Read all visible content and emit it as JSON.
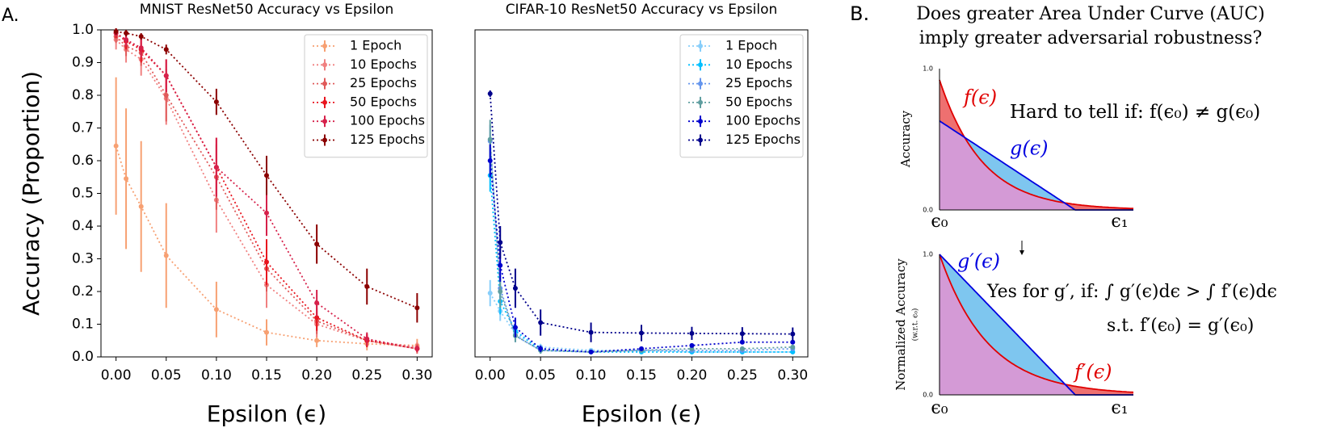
{
  "panel_a_label": "A.",
  "chart_data": [
    {
      "type": "line",
      "title": "MNIST ResNet50 Accuracy vs Epsilon",
      "xlabel": "Epsilon (ϵ)",
      "ylabel": "Accuracy (Proportion)",
      "x": [
        0,
        0.01,
        0.025,
        0.05,
        0.1,
        0.15,
        0.2,
        0.25,
        0.3
      ],
      "xlim": [
        -0.015,
        0.315
      ],
      "xticks": [
        {
          "value": 0,
          "label": "0.00"
        },
        0.05,
        {
          "value": 0.1,
          "label": "0.10"
        },
        0.15,
        {
          "value": 0.2,
          "label": "0.20"
        },
        0.25,
        {
          "value": 0.3,
          "label": "0.30"
        }
      ],
      "ylim": [
        0,
        1
      ],
      "yticks": [
        {
          "value": 0,
          "label": "0.0"
        },
        0.1,
        0.2,
        0.3,
        0.4,
        0.5,
        0.6,
        0.7,
        0.8,
        0.9,
        {
          "value": 1,
          "label": "1.0"
        }
      ],
      "legend": "upper right",
      "grid": false,
      "series": [
        {
          "name": "1 Epoch",
          "color": "#f7a072",
          "values": [
            0.645,
            0.545,
            0.46,
            0.31,
            0.145,
            0.075,
            0.05,
            0.04,
            0.035
          ],
          "errors": [
            0.21,
            0.215,
            0.2,
            0.16,
            0.085,
            0.04,
            0.02,
            0.02,
            0.02
          ]
        },
        {
          "name": "10 Epochs",
          "color": "#f08080",
          "values": [
            0.97,
            0.94,
            0.91,
            0.79,
            0.48,
            0.22,
            0.1,
            0.05,
            0.03
          ],
          "errors": [
            0.03,
            0.04,
            0.05,
            0.08,
            0.1,
            0.07,
            0.04,
            0.02,
            0.015
          ]
        },
        {
          "name": "25 Epochs",
          "color": "#e05a5a",
          "values": [
            0.98,
            0.95,
            0.93,
            0.8,
            0.55,
            0.27,
            0.11,
            0.05,
            0.025
          ],
          "errors": [
            0.02,
            0.03,
            0.04,
            0.08,
            0.1,
            0.07,
            0.04,
            0.02,
            0.015
          ]
        },
        {
          "name": "50 Epochs",
          "color": "#e8141e",
          "values": [
            0.99,
            0.965,
            0.94,
            0.86,
            0.58,
            0.29,
            0.12,
            0.05,
            0.025
          ],
          "errors": [
            0.015,
            0.025,
            0.04,
            0.05,
            0.09,
            0.07,
            0.04,
            0.02,
            0.01
          ]
        },
        {
          "name": "100 Epochs",
          "color": "#d6204a",
          "values": [
            0.99,
            0.97,
            0.945,
            0.86,
            0.58,
            0.44,
            0.165,
            0.055,
            0.025
          ],
          "errors": [
            0.01,
            0.02,
            0.03,
            0.05,
            0.09,
            0.07,
            0.04,
            0.02,
            0.01
          ]
        },
        {
          "name": "125 Epochs",
          "color": "#8b0000",
          "values": [
            0.995,
            0.99,
            0.98,
            0.94,
            0.78,
            0.555,
            0.345,
            0.215,
            0.15
          ],
          "errors": [
            0.01,
            0.01,
            0.01,
            0.015,
            0.04,
            0.06,
            0.06,
            0.055,
            0.045
          ]
        }
      ]
    },
    {
      "type": "line",
      "title": "CIFAR-10 ResNet50 Accuracy vs Epsilon",
      "xlabel": "Epsilon (ϵ)",
      "x": [
        0,
        0.01,
        0.025,
        0.05,
        0.1,
        0.15,
        0.2,
        0.25,
        0.3
      ],
      "xlim": [
        -0.015,
        0.315
      ],
      "xticks": [
        {
          "value": 0,
          "label": "0.00"
        },
        0.05,
        {
          "value": 0.1,
          "label": "0.10"
        },
        0.15,
        {
          "value": 0.2,
          "label": "0.20"
        },
        0.25,
        {
          "value": 0.3,
          "label": "0.30"
        }
      ],
      "ylim": [
        0,
        1
      ],
      "legend": "upper right",
      "grid": false,
      "series": [
        {
          "name": "1 Epoch",
          "color": "#87cefa",
          "values": [
            0.195,
            0.14,
            0.07,
            0.03,
            0.02,
            0.02,
            0.015,
            0.015,
            0.015
          ],
          "errors": [
            0.04,
            0.03,
            0.02,
            0.01,
            0.005,
            0.005,
            0.005,
            0.005,
            0.005
          ]
        },
        {
          "name": "10 Epochs",
          "color": "#00bfff",
          "values": [
            0.555,
            0.17,
            0.08,
            0.02,
            0.015,
            0.015,
            0.015,
            0.015,
            0.015
          ],
          "errors": [
            0.05,
            0.04,
            0.02,
            0.01,
            0.005,
            0.005,
            0.005,
            0.005,
            0.005
          ]
        },
        {
          "name": "25 Epochs",
          "color": "#6495ed",
          "values": [
            0.66,
            0.21,
            0.065,
            0.02,
            0.015,
            0.02,
            0.02,
            0.02,
            0.025
          ],
          "errors": [
            0.05,
            0.05,
            0.02,
            0.01,
            0.005,
            0.005,
            0.005,
            0.005,
            0.005
          ]
        },
        {
          "name": "50 Epochs",
          "color": "#5f9ea0",
          "values": [
            0.665,
            0.2,
            0.065,
            0.02,
            0.015,
            0.02,
            0.025,
            0.025,
            0.03
          ],
          "errors": [
            0.06,
            0.05,
            0.02,
            0.01,
            0.005,
            0.005,
            0.005,
            0.005,
            0.005
          ]
        },
        {
          "name": "100 Epochs",
          "color": "#0000cd",
          "values": [
            0.6,
            0.28,
            0.09,
            0.025,
            0.015,
            0.025,
            0.035,
            0.045,
            0.045
          ],
          "errors": [
            0.05,
            0.05,
            0.03,
            0.01,
            0.005,
            0.005,
            0.005,
            0.005,
            0.005
          ]
        },
        {
          "name": "125 Epochs",
          "color": "#00008b",
          "values": [
            0.805,
            0.35,
            0.21,
            0.105,
            0.075,
            0.073,
            0.072,
            0.071,
            0.07
          ],
          "errors": [
            0.01,
            0.05,
            0.06,
            0.04,
            0.03,
            0.025,
            0.02,
            0.02,
            0.02
          ]
        }
      ]
    }
  ],
  "panel_b": {
    "label": "B.",
    "title": [
      "Does greater Area Under Curve (AUC)",
      "imply greater adversarial robustness?"
    ],
    "top": {
      "ylabel": "Accuracy",
      "ytick_top": "1.0",
      "ytick_bottom": "0.0",
      "x_start": "ϵ₀",
      "x_end": "ϵ₁",
      "f_label": "f(ϵ)",
      "g_label": "g(ϵ)",
      "note": "Hard to tell if: f(ϵ₀) ≠ g(ϵ₀)"
    },
    "bottom": {
      "ylabel": "Normalized Accuracy",
      "ylabel_sub": "(w.r.t. ϵ₀)",
      "ytick_top": "1.0",
      "ytick_bottom": "0.0",
      "x_start": "ϵ₀",
      "x_end": "ϵ₁",
      "f_label": "f′(ϵ)",
      "g_label": "g′(ϵ)",
      "note": "Yes for g′, if: ∫ g′(ϵ)dϵ > ∫ f′(ϵ)dϵ",
      "note2": "s.t. f′(ϵ₀) = g′(ϵ₀)"
    }
  }
}
